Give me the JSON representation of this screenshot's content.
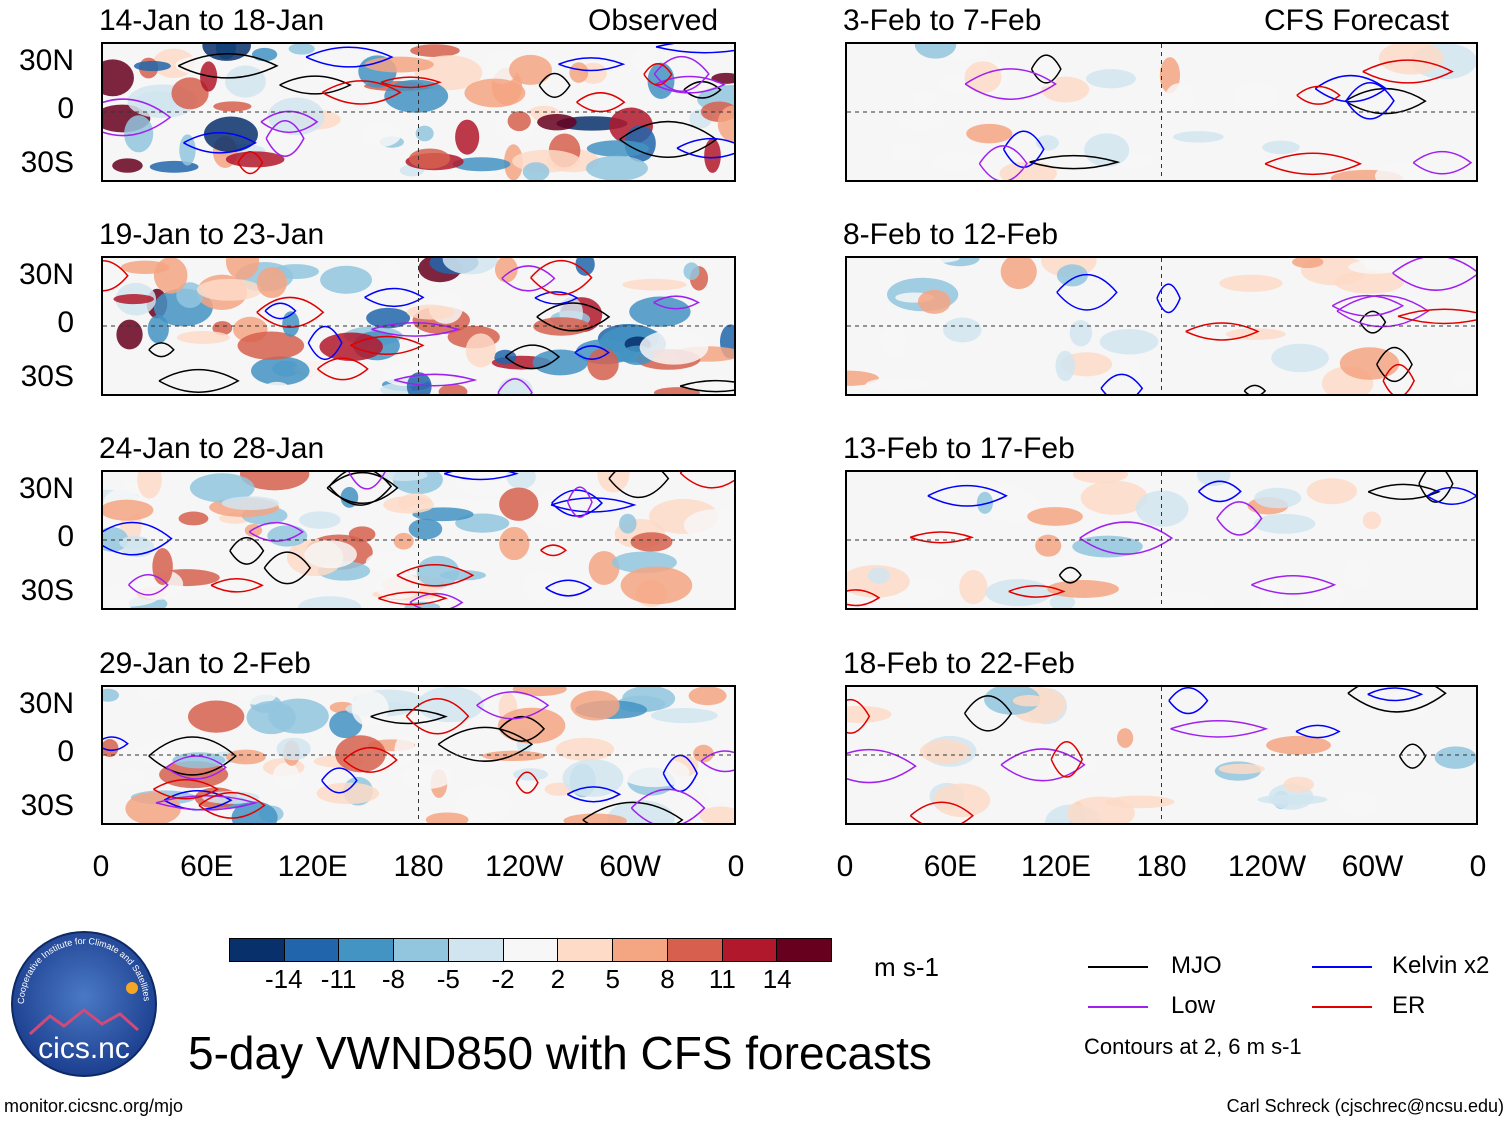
{
  "chart_data": {
    "type": "heatmap",
    "title": "5-day VWND850 with CFS forecasts",
    "variable": "VWND850",
    "units": "m s-1",
    "column_headers": {
      "left": "Observed",
      "right": "CFS Forecast"
    },
    "panels": [
      {
        "column": "left",
        "row": 0,
        "period": "14-Jan to 18-Jan",
        "source": "observed"
      },
      {
        "column": "left",
        "row": 1,
        "period": "19-Jan to 23-Jan",
        "source": "observed"
      },
      {
        "column": "left",
        "row": 2,
        "period": "24-Jan to 28-Jan",
        "source": "observed"
      },
      {
        "column": "left",
        "row": 3,
        "period": "29-Jan to 2-Feb",
        "source": "observed"
      },
      {
        "column": "right",
        "row": 0,
        "period": "3-Feb to 7-Feb",
        "source": "forecast"
      },
      {
        "column": "right",
        "row": 1,
        "period": "8-Feb to 12-Feb",
        "source": "forecast"
      },
      {
        "column": "right",
        "row": 2,
        "period": "13-Feb to 17-Feb",
        "source": "forecast"
      },
      {
        "column": "right",
        "row": 3,
        "period": "18-Feb to 22-Feb",
        "source": "forecast"
      }
    ],
    "lat_ticks": [
      "30N",
      "0",
      "30S"
    ],
    "lat_range": [
      -40,
      40
    ],
    "lon_ticks": [
      "0",
      "60E",
      "120E",
      "180",
      "120W",
      "60W",
      "0"
    ],
    "lon_range": [
      0,
      360
    ],
    "colorbar": {
      "levels": [
        -14,
        -11,
        -8,
        -5,
        -2,
        2,
        5,
        8,
        11,
        14
      ],
      "labels": [
        "-14",
        "-11",
        "-8",
        "-5",
        "-2",
        "2",
        "5",
        "8",
        "11",
        "14"
      ],
      "colors": [
        "#08306b",
        "#2166ac",
        "#4393c3",
        "#92c5de",
        "#d1e5f0",
        "#f7f7f7",
        "#fddbc7",
        "#f4a582",
        "#d6604d",
        "#b2182b",
        "#67001f"
      ]
    },
    "contour_legend": [
      {
        "name": "MJO",
        "color": "#000000"
      },
      {
        "name": "Kelvin x2",
        "color": "#0000ff"
      },
      {
        "name": "Low",
        "color": "#a020f0"
      },
      {
        "name": "ER",
        "color": "#e00000"
      }
    ],
    "contour_note": "Contours at 2, 6 m s-1"
  },
  "logo": {
    "text": "cics.nc",
    "ring_text": "Cooperative Institute for Climate and Satellites"
  },
  "footer": {
    "url": "monitor.cicsnc.org/mjo",
    "credit": "Carl Schreck (cjschrec@ncsu.edu)"
  }
}
